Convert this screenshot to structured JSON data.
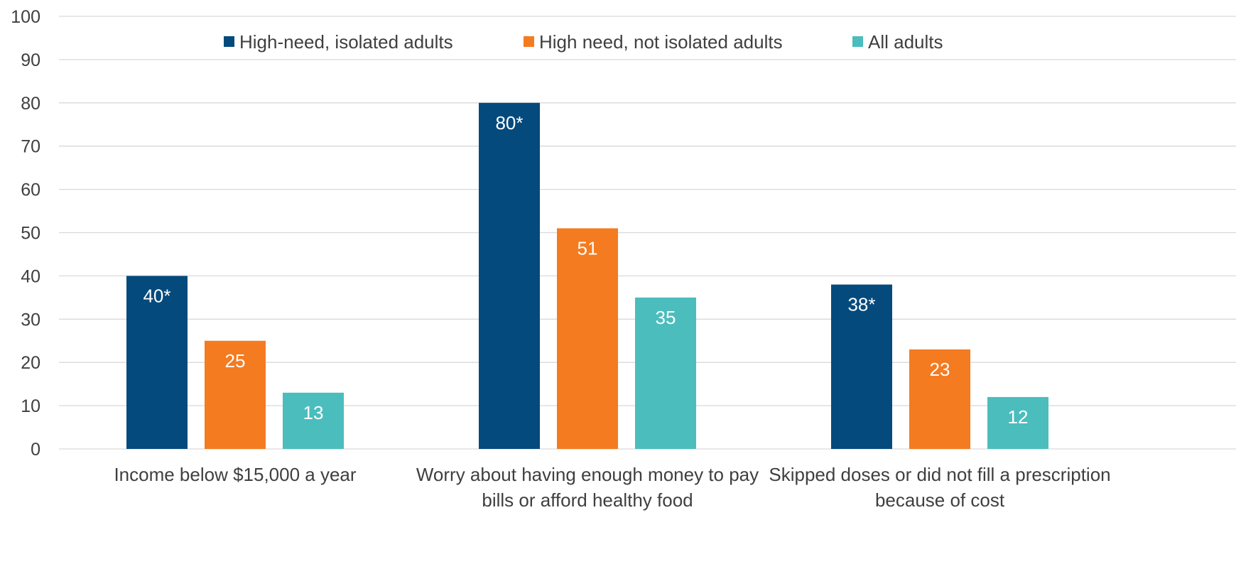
{
  "chart_data": {
    "type": "bar",
    "categories": [
      [
        "Income below $15,000 a year"
      ],
      [
        "Worry about having enough money to pay",
        "bills or afford healthy food"
      ],
      [
        "Skipped doses or did not fill a prescription",
        "because of cost"
      ]
    ],
    "series": [
      {
        "name": "High-need, isolated adults",
        "color": "#054A7C",
        "values": [
          40,
          80,
          38
        ],
        "labels": [
          "40*",
          "80*",
          "38*"
        ]
      },
      {
        "name": "High need, not isolated adults",
        "color": "#F47B20",
        "values": [
          25,
          51,
          23
        ],
        "labels": [
          "25",
          "51",
          "23"
        ]
      },
      {
        "name": "All adults",
        "color": "#4BBDBD",
        "values": [
          13,
          35,
          12
        ],
        "labels": [
          "13",
          "35",
          "12"
        ]
      }
    ],
    "ylim": [
      0,
      100
    ],
    "yticks": [
      0,
      10,
      20,
      30,
      40,
      50,
      60,
      70,
      80,
      90,
      100
    ],
    "grid": true,
    "legend_position": "top-center",
    "title": "",
    "xlabel": "",
    "ylabel": ""
  }
}
